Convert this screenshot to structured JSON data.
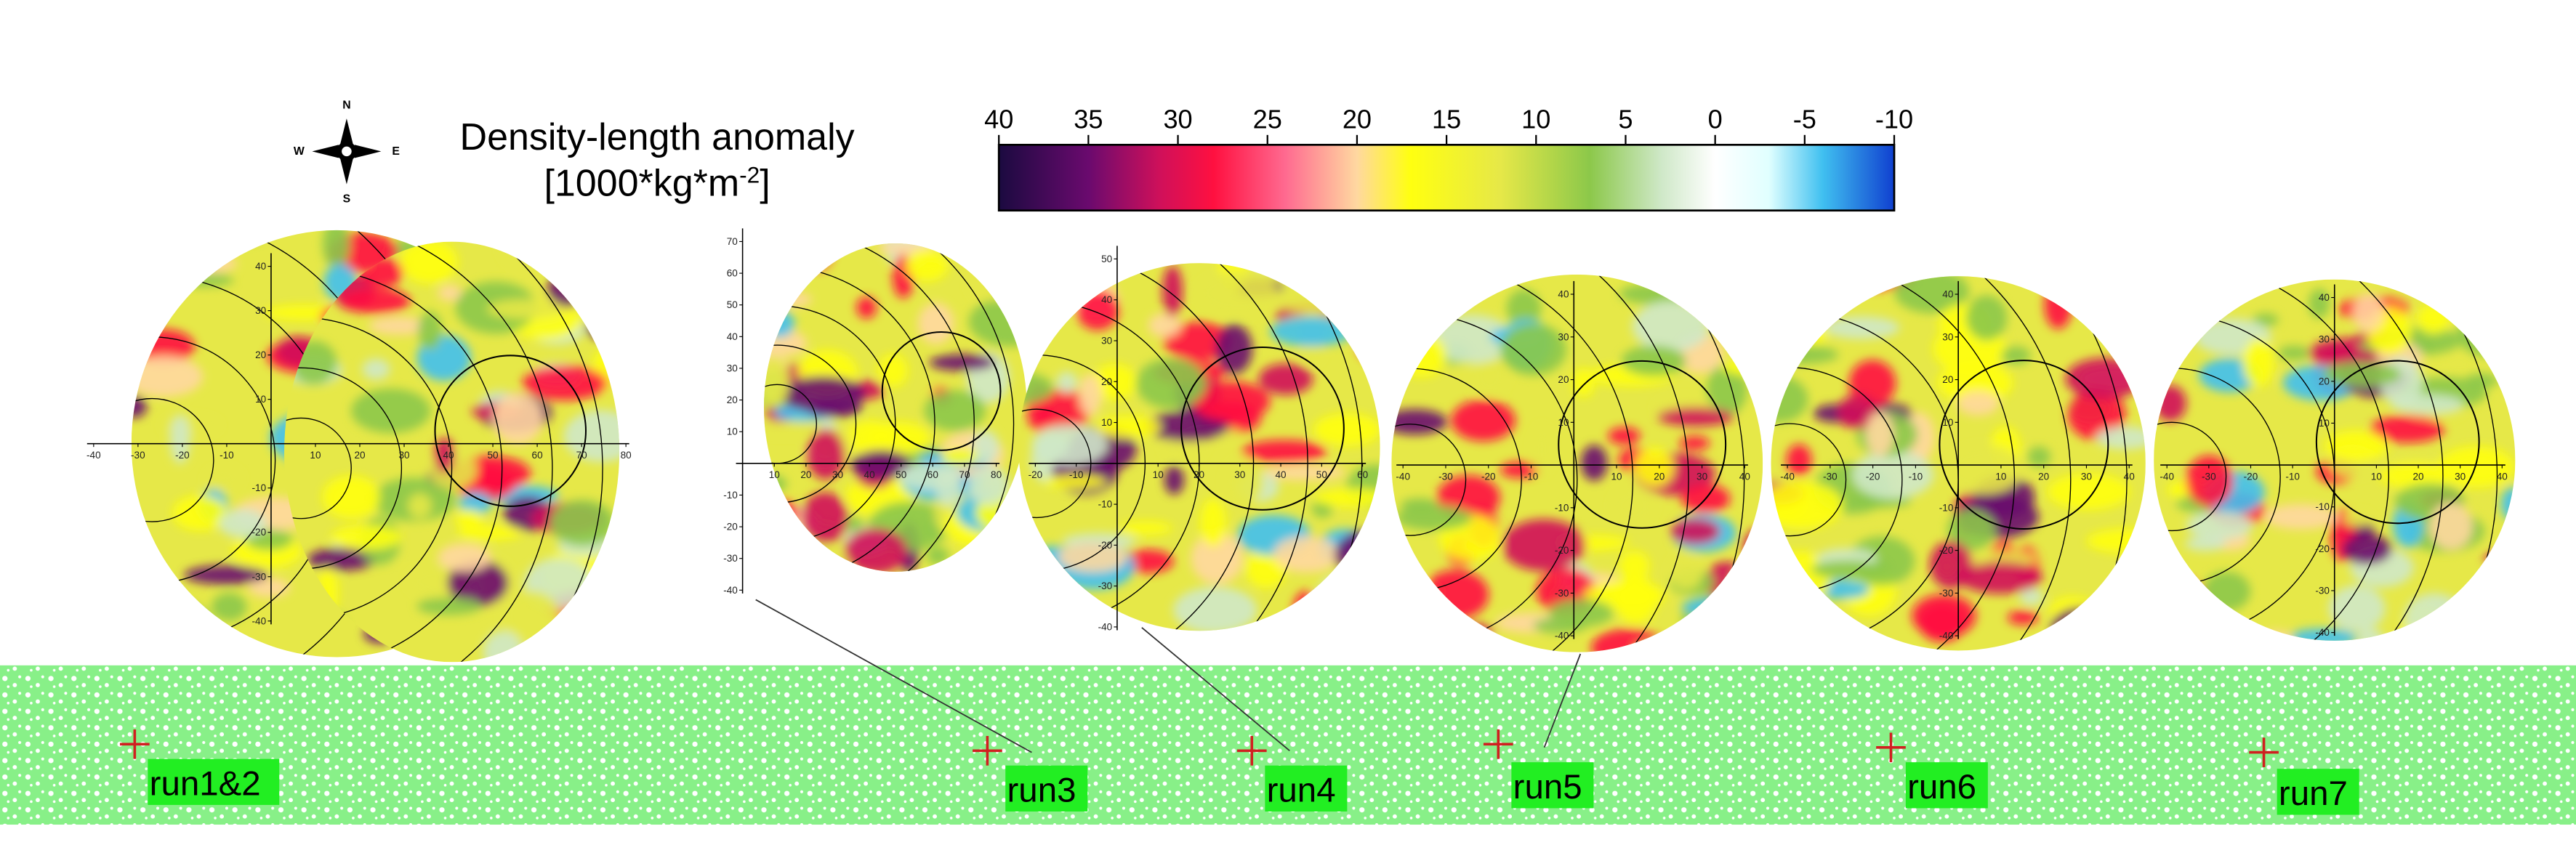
{
  "compass": {
    "n": "N",
    "s": "S",
    "w": "W",
    "e": "E"
  },
  "title": "Density-length anomaly",
  "units": {
    "open": "[1000*kg*m",
    "exponent": "-2",
    "close": "]"
  },
  "colorbar": {
    "lim": [
      40,
      -10
    ],
    "ticks": [
      40,
      35,
      30,
      25,
      20,
      15,
      10,
      5,
      0,
      -5,
      -10
    ],
    "stops": [
      {
        "value": 40,
        "color": "#1b0a40"
      },
      {
        "value": 35,
        "color": "#6a0a6e"
      },
      {
        "value": 31,
        "color": "#d0105a"
      },
      {
        "value": 28,
        "color": "#ff1040"
      },
      {
        "value": 24,
        "color": "#ff6a90"
      },
      {
        "value": 20,
        "color": "#ffd8a0"
      },
      {
        "value": 17,
        "color": "#ffff10"
      },
      {
        "value": 12,
        "color": "#e6e848"
      },
      {
        "value": 7,
        "color": "#8cc84a"
      },
      {
        "value": 3,
        "color": "#cfe8c8"
      },
      {
        "value": 0,
        "color": "#ffffff"
      },
      {
        "value": -3,
        "color": "#e0ffff"
      },
      {
        "value": -6,
        "color": "#40c0f0"
      },
      {
        "value": -10,
        "color": "#1040d0"
      }
    ]
  },
  "panels": [
    {
      "xticks": [
        -40,
        -30,
        -20,
        -10,
        10,
        20,
        30,
        40,
        50,
        60,
        70,
        80
      ],
      "yticks": [
        40,
        30,
        20,
        10,
        -10,
        -20,
        -30,
        -40
      ]
    },
    {
      "xticks": [
        10,
        20,
        30,
        40,
        50,
        60,
        70,
        80
      ],
      "yticks": [
        70,
        60,
        50,
        40,
        30,
        20,
        10,
        -10,
        -20,
        -30,
        -40
      ]
    },
    {
      "xticks": [
        -20,
        -10,
        10,
        20,
        30,
        40,
        50,
        60
      ],
      "yticks": [
        50,
        40,
        30,
        20,
        10,
        -10,
        -20,
        -30,
        -40
      ]
    },
    {
      "xticks": [
        -40,
        -30,
        -20,
        -10,
        10,
        20,
        30,
        40
      ],
      "yticks": [
        40,
        30,
        20,
        10,
        -10,
        -20,
        -30,
        -40
      ]
    },
    {
      "xticks": [
        -40,
        -30,
        -20,
        -10,
        10,
        20,
        30,
        40
      ],
      "yticks": [
        40,
        30,
        20,
        10,
        -10,
        -20,
        -30,
        -40
      ]
    },
    {
      "xticks": [
        -40,
        -30,
        -20,
        -10,
        10,
        20,
        30,
        40
      ],
      "yticks": [
        40,
        30,
        20,
        10,
        -10,
        -20,
        -30,
        -40
      ]
    }
  ],
  "runs": [
    "run1&2",
    "run3",
    "run4",
    "run5",
    "run6",
    "run7"
  ]
}
